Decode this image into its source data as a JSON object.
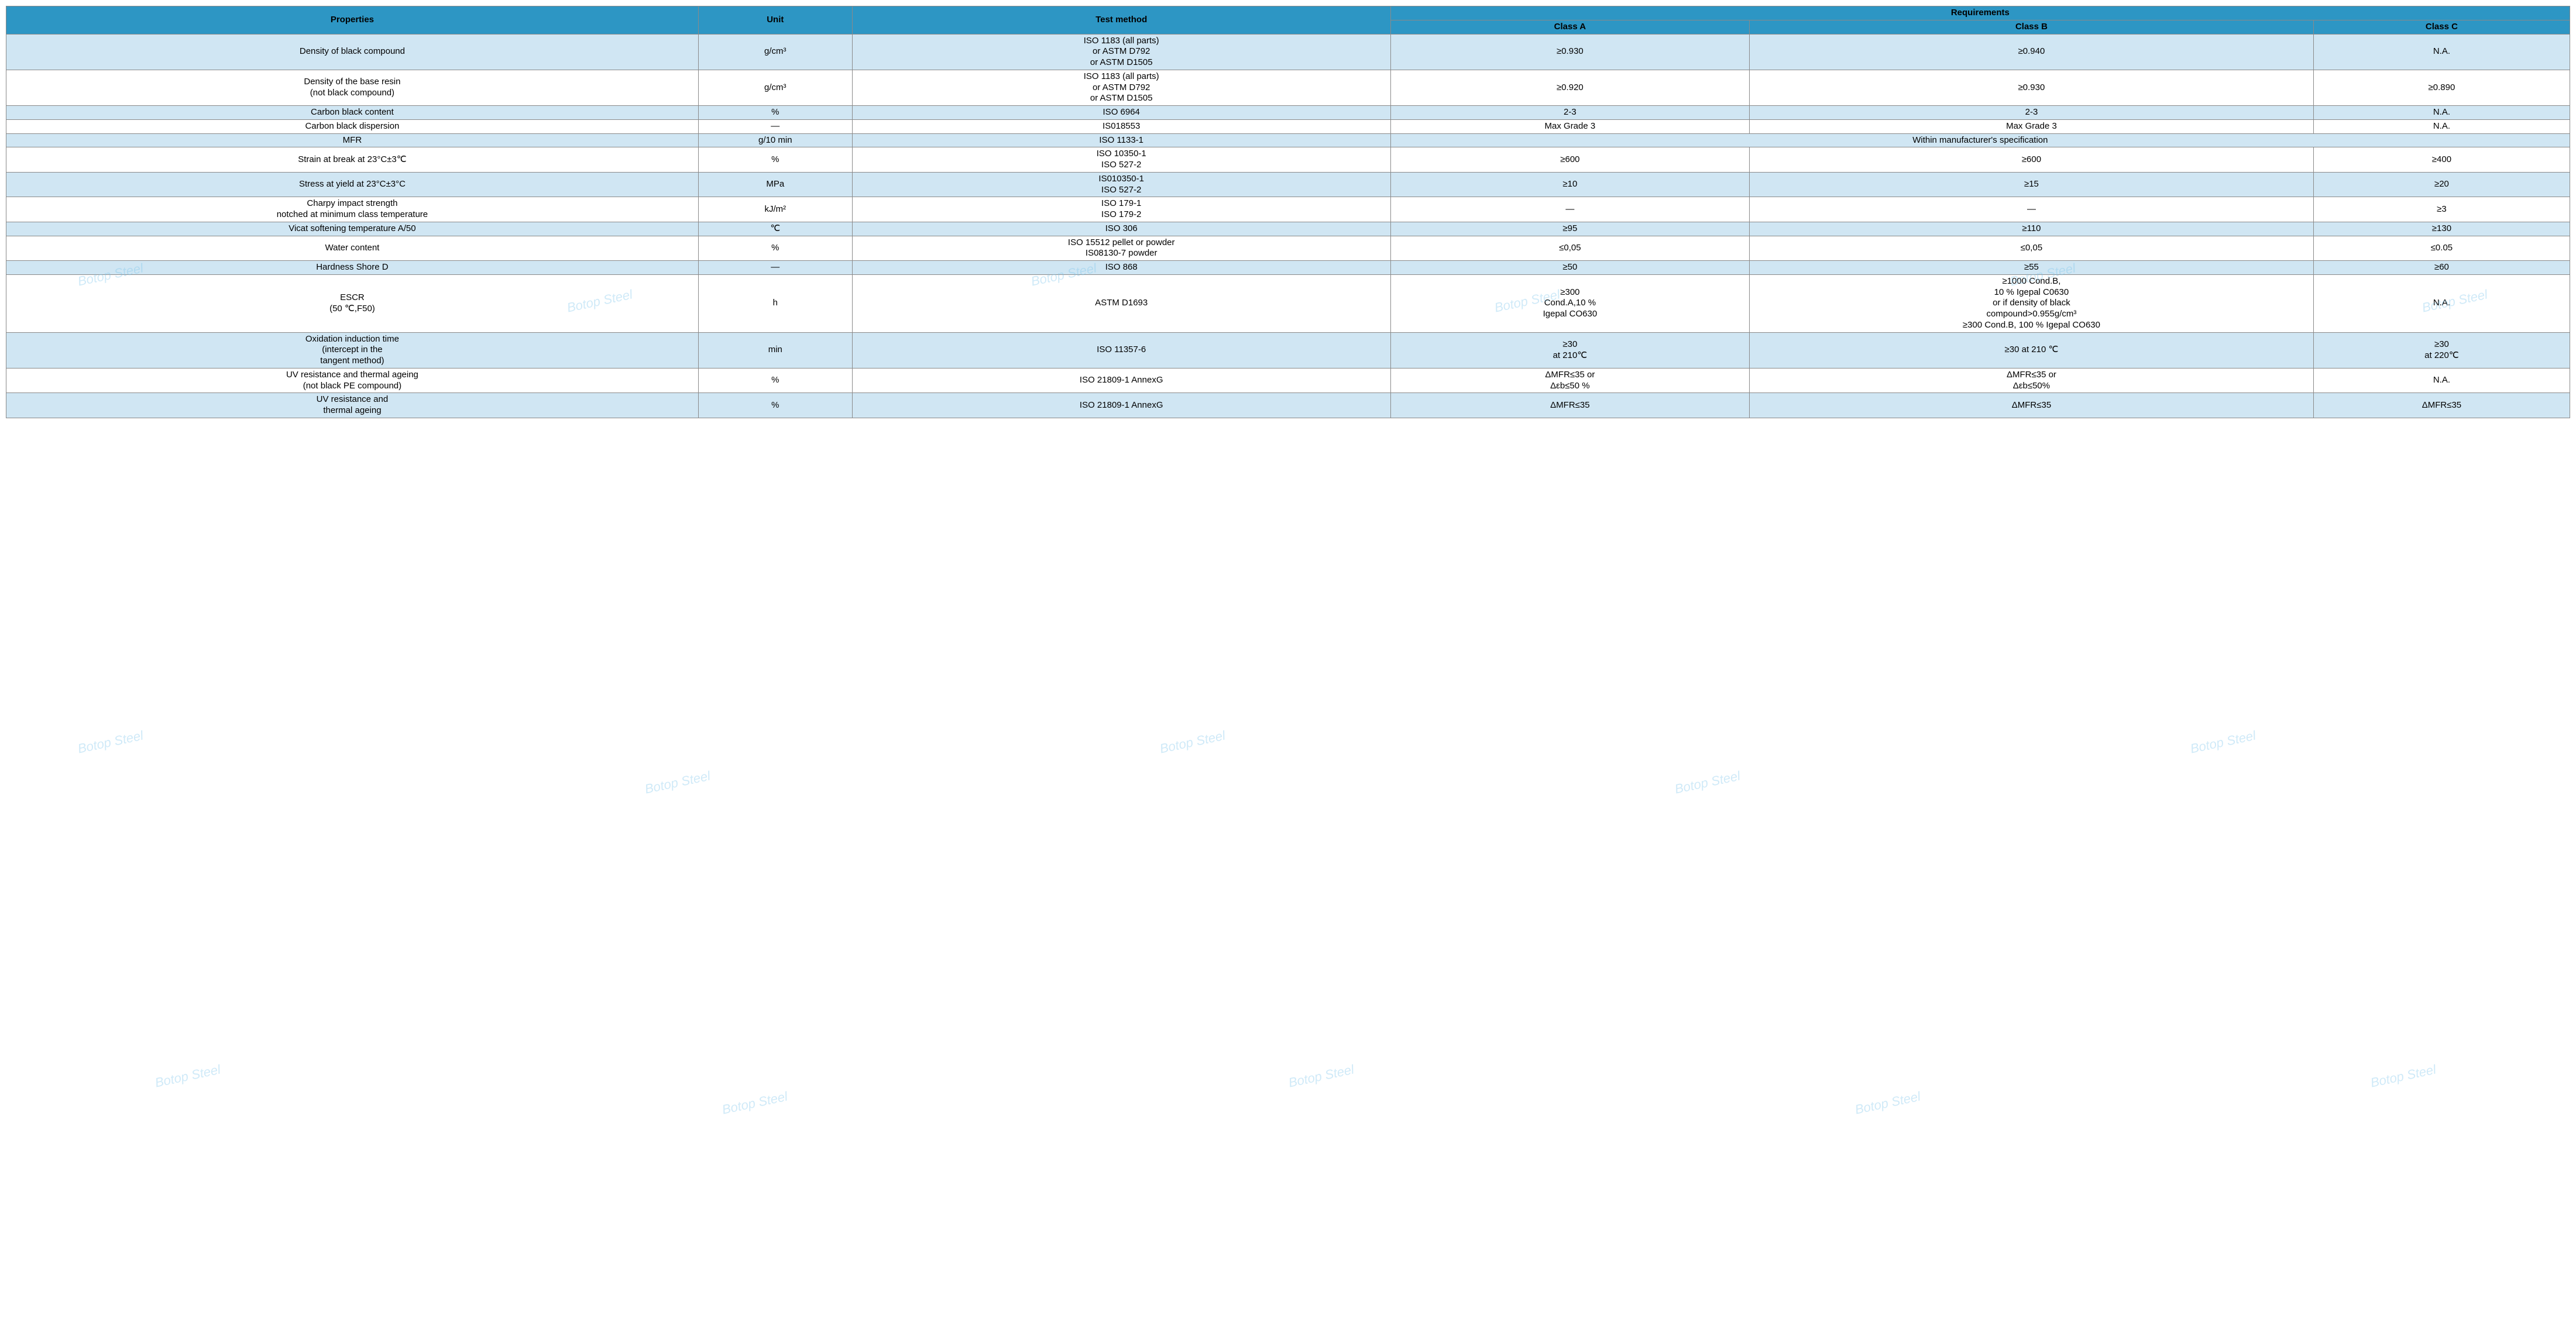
{
  "colors": {
    "header_bg": "#2d96c4",
    "header_text": "#000000",
    "band_light": "#d0e6f3",
    "band_white": "#ffffff",
    "border": "#8a8a8a",
    "watermark": "rgba(120,195,235,0.35)"
  },
  "watermark_text": "Botop Steel",
  "column_widths_percent": [
    27,
    6,
    21,
    14,
    22,
    10
  ],
  "header": {
    "properties": "Properties",
    "unit": "Unit",
    "test_method": "Test method",
    "requirements": "Requirements",
    "class_a": "Class A",
    "class_b": "Class B",
    "class_c": "Class C"
  },
  "rows": [
    {
      "band": "light",
      "property": "Density of black compound",
      "unit": "g/cm³",
      "test_method": "ISO 1183 (all parts)\nor ASTM D792\nor ASTM D1505",
      "a": "≥0.930",
      "b": "≥0.940",
      "c": "N.A."
    },
    {
      "band": "white",
      "property": "Density of the base resin\n(not black compound)",
      "unit": "g/cm³",
      "test_method": "ISO 1183 (all parts)\nor ASTM D792\nor ASTM D1505",
      "a": "≥0.920",
      "b": "≥0.930",
      "c": "≥0.890"
    },
    {
      "band": "light",
      "property": "Carbon black content",
      "unit": "%",
      "test_method": "ISO 6964",
      "a": "2-3",
      "b": "2-3",
      "c": "N.A."
    },
    {
      "band": "white",
      "property": "Carbon black dispersion",
      "unit": "—",
      "test_method": "IS018553",
      "a": "Max Grade 3",
      "b": "Max Grade 3",
      "c": "N.A."
    },
    {
      "band": "light",
      "property": "MFR",
      "unit": "g/10 min",
      "test_method": "ISO 1133-1",
      "merged_abc": "Within manufacturer's specification"
    },
    {
      "band": "white",
      "property": "Strain at break at 23°C±3℃",
      "unit": "%",
      "test_method": "ISO 10350-1\nISO 527-2",
      "a": "≥600",
      "b": "≥600",
      "c": "≥400"
    },
    {
      "band": "light",
      "property": "Stress at yield at 23°C±3°C",
      "unit": "MPa",
      "test_method": "IS010350-1\nISO 527-2",
      "a": "≥10",
      "b": "≥15",
      "c": "≥20"
    },
    {
      "band": "white",
      "property": "Charpy impact strength\nnotched at minimum class temperature",
      "unit": "kJ/m²",
      "test_method": "ISO 179-1\nISO 179-2",
      "a": "—",
      "b": "—",
      "c": "≥3"
    },
    {
      "band": "light",
      "property": "Vicat softening temperature A/50",
      "unit": "℃",
      "test_method": "ISO 306",
      "a": "≥95",
      "b": "≥110",
      "c": "≥130"
    },
    {
      "band": "white",
      "property": "Water content",
      "unit": "%",
      "test_method": "ISO 15512 pellet or powder\nIS08130-7 powder",
      "a": "≤0,05",
      "b": "≤0,05",
      "c": "≤0.05"
    },
    {
      "band": "light",
      "property": "Hardness Shore D",
      "unit": "—",
      "test_method": "ISO 868",
      "a": "≥50",
      "b": "≥55",
      "c": "≥60"
    },
    {
      "band": "white",
      "property": "ESCR\n(50 ℃,F50)",
      "unit": "h",
      "test_method": "ASTM D1693",
      "a": "≥300\nCond.A,10 %\nIgepal CO630",
      "b": "≥1000 Cond.B,\n10 % Igepal C0630\nor if density of black\ncompound>0.955g/cm³\n≥300 Cond.B, 100 % Igepal CO630",
      "c": "N.A."
    },
    {
      "band": "light",
      "property": "Oxidation induction time\n(intercept in the\ntangent method)",
      "unit": "min",
      "test_method": "ISO 11357-6",
      "a": "≥30\nat 210℃",
      "b": "≥30 at 210 ℃",
      "c": "≥30\nat 220℃"
    },
    {
      "band": "white",
      "property": "UV resistance and thermal ageing\n(not black PE compound)",
      "unit": "%",
      "test_method": "ISO 21809-1 AnnexG",
      "a": "ΔMFR≤35 or\nΔεb≤50 %",
      "b": "ΔMFR≤35 or\nΔεb≤50%",
      "c": "N.A."
    },
    {
      "band": "light",
      "property": "UV resistance and\nthermal ageing",
      "unit": "%",
      "test_method": "ISO 21809-1 AnnexG",
      "a": "ΔMFR≤35",
      "b": "ΔMFR≤35",
      "c": "ΔMFR≤35"
    }
  ]
}
